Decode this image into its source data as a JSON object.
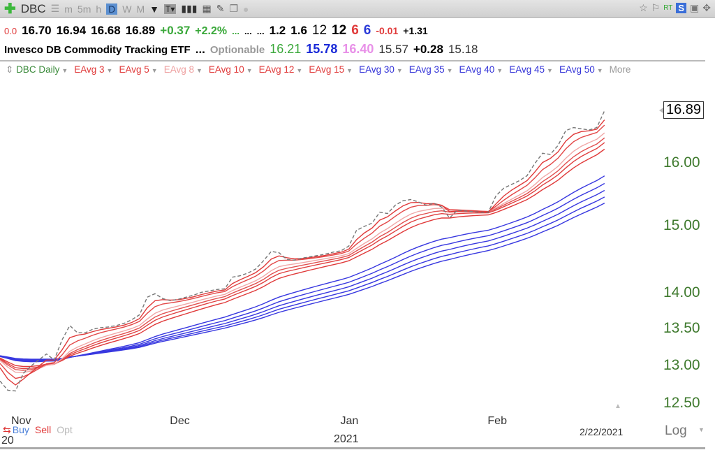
{
  "toolbar": {
    "symbol": "DBC",
    "periods": [
      "m",
      "5m",
      "h",
      "D",
      "W",
      "M"
    ],
    "active_period": "D",
    "rt": "RT",
    "s": "S"
  },
  "quote": {
    "v0": "0.0",
    "open": "16.70",
    "high": "16.94",
    "low": "16.68",
    "close": "16.89",
    "change": "+0.37",
    "pct": "+2.2%",
    "d1": "...",
    "d2": "...",
    "d3": "...",
    "a": "1.2",
    "b": "1.6",
    "c": "12",
    "d": "12",
    "e": "6",
    "f": "6",
    "g": "-0.01",
    "h": "+1.31"
  },
  "info": {
    "name": "Invesco DB Commodity Tracking ETF",
    "dots": "...",
    "optionable": "Optionable",
    "v1": "16.21",
    "v2": "15.78",
    "v3": "16.40",
    "v4": "15.57",
    "v5": "+0.28",
    "v6": "15.18"
  },
  "legend": [
    {
      "label": "DBC Daily",
      "color": "#3a8a3a"
    },
    {
      "label": "EAvg 3",
      "color": "#e03a3a"
    },
    {
      "label": "EAvg 5",
      "color": "#e03a3a"
    },
    {
      "label": "EAvg 8",
      "color": "#eea0a0"
    },
    {
      "label": "EAvg 10",
      "color": "#e03a3a"
    },
    {
      "label": "EAvg 12",
      "color": "#e03a3a"
    },
    {
      "label": "EAvg 15",
      "color": "#e03a3a"
    },
    {
      "label": "EAvg 30",
      "color": "#3434d8"
    },
    {
      "label": "EAvg 35",
      "color": "#3434d8"
    },
    {
      "label": "EAvg 40",
      "color": "#3434d8"
    },
    {
      "label": "EAvg 45",
      "color": "#3434d8"
    },
    {
      "label": "EAvg 50",
      "color": "#3434d8"
    },
    {
      "label": "More",
      "color": "#999999"
    }
  ],
  "bottom": {
    "buy": "Buy",
    "sell": "Sell",
    "opt": "Opt",
    "date": "2/22/2021",
    "log": "Log",
    "year": "2021",
    "nov_year": "20"
  },
  "chart_data": {
    "type": "line",
    "title": "DBC Daily",
    "scale": "log",
    "ylim": [
      12.35,
      17.0
    ],
    "yticks": [
      "16.00",
      "15.00",
      "14.00",
      "13.50",
      "13.00",
      "12.50"
    ],
    "xticks": [
      {
        "label": "Nov",
        "index": 0
      },
      {
        "label": "Dec",
        "index": 23
      },
      {
        "label": "Jan",
        "index": 45
      },
      {
        "label": "Feb",
        "index": 64
      }
    ],
    "last_price": "16.89",
    "ema_periods": [
      3,
      5,
      8,
      10,
      12,
      15,
      30,
      35,
      40,
      45,
      50
    ],
    "ema_seed": 13.15,
    "close": [
      12.8,
      12.68,
      12.67,
      12.9,
      13.0,
      13.08,
      13.16,
      13.08,
      13.35,
      13.55,
      13.45,
      13.45,
      13.5,
      13.52,
      13.53,
      13.55,
      13.58,
      13.63,
      13.7,
      13.95,
      14.0,
      13.93,
      13.9,
      13.92,
      13.95,
      13.98,
      14.02,
      14.04,
      14.06,
      14.07,
      14.24,
      14.26,
      14.3,
      14.36,
      14.48,
      14.62,
      14.6,
      14.5,
      14.49,
      14.52,
      14.54,
      14.56,
      14.58,
      14.61,
      14.63,
      14.7,
      14.94,
      15.0,
      15.05,
      15.22,
      15.2,
      15.33,
      15.4,
      15.42,
      15.38,
      15.33,
      15.36,
      15.3,
      15.13,
      15.25,
      15.24,
      15.23,
      15.22,
      15.22,
      15.48,
      15.6,
      15.66,
      15.72,
      15.8,
      16.0,
      16.17,
      16.15,
      16.3,
      16.55,
      16.6,
      16.58,
      16.56,
      16.6,
      16.89
    ]
  }
}
